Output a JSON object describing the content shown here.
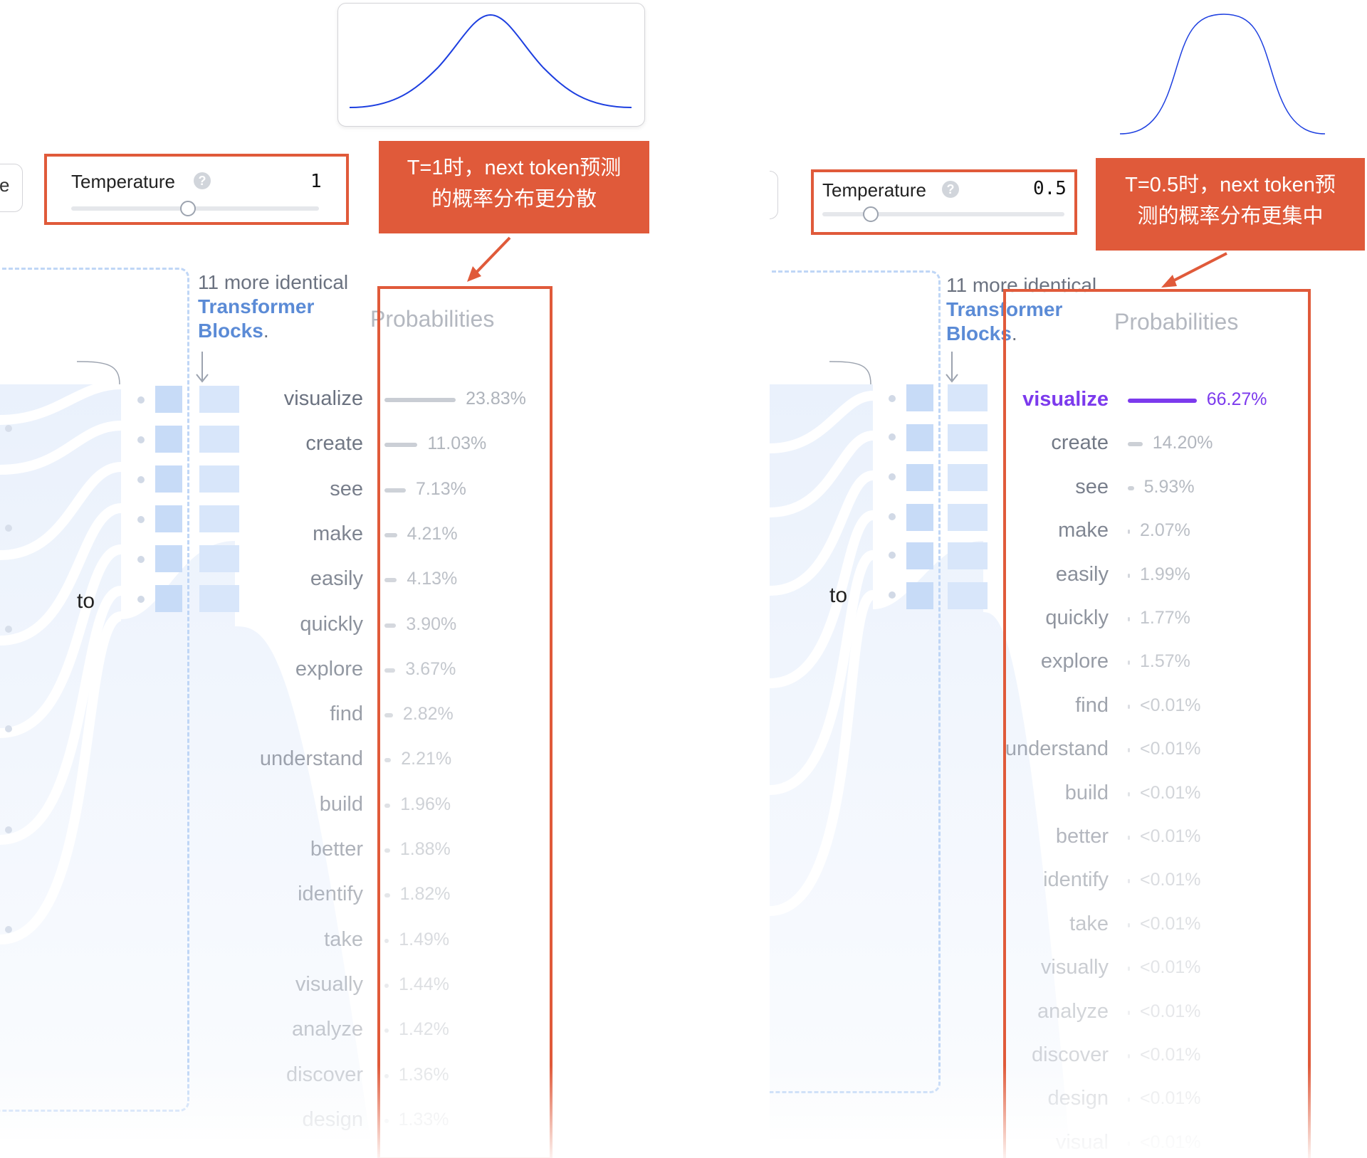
{
  "left": {
    "temperature": {
      "label": "Temperature",
      "help": "?",
      "value": "1",
      "slider_fraction": 0.47
    },
    "callout": {
      "lines": [
        "T=1时，next token预测",
        "的概率分布更分散"
      ]
    },
    "cut_control_glyph": "e",
    "more_blocks": {
      "prefix": "11 more identical",
      "link_line1": "Transformer",
      "link_line2": "Blocks",
      "suffix": "."
    },
    "probabilities_title": "Probabilities",
    "input_token": "to",
    "accent": "#c7cbd2",
    "probabilities": [
      {
        "word": "visualize",
        "pct": "23.83%",
        "value": 23.83
      },
      {
        "word": "create",
        "pct": "11.03%",
        "value": 11.03
      },
      {
        "word": "see",
        "pct": "7.13%",
        "value": 7.13
      },
      {
        "word": "make",
        "pct": "4.21%",
        "value": 4.21
      },
      {
        "word": "easily",
        "pct": "4.13%",
        "value": 4.13
      },
      {
        "word": "quickly",
        "pct": "3.90%",
        "value": 3.9
      },
      {
        "word": "explore",
        "pct": "3.67%",
        "value": 3.67
      },
      {
        "word": "find",
        "pct": "2.82%",
        "value": 2.82
      },
      {
        "word": "understand",
        "pct": "2.21%",
        "value": 2.21
      },
      {
        "word": "build",
        "pct": "1.96%",
        "value": 1.96
      },
      {
        "word": "better",
        "pct": "1.88%",
        "value": 1.88
      },
      {
        "word": "identify",
        "pct": "1.82%",
        "value": 1.82
      },
      {
        "word": "take",
        "pct": "1.49%",
        "value": 1.49
      },
      {
        "word": "visually",
        "pct": "1.44%",
        "value": 1.44
      },
      {
        "word": "analyze",
        "pct": "1.42%",
        "value": 1.42
      },
      {
        "word": "discover",
        "pct": "1.36%",
        "value": 1.36
      },
      {
        "word": "design",
        "pct": "1.33%",
        "value": 1.33
      }
    ]
  },
  "right": {
    "temperature": {
      "label": "Temperature",
      "help": "?",
      "value": "0.5",
      "slider_fraction": 0.2
    },
    "callout": {
      "lines": [
        "T=0.5时，next token预",
        "测的概率分布更集中"
      ]
    },
    "more_blocks": {
      "prefix": "11 more identical",
      "link_line1": "Transformer",
      "link_line2": "Blocks",
      "suffix": "."
    },
    "probabilities_title": "Probabilities",
    "input_token": "to",
    "accent": "#7c3aed",
    "probabilities": [
      {
        "word": "visualize",
        "pct": "66.27%",
        "value": 66.27
      },
      {
        "word": "create",
        "pct": "14.20%",
        "value": 14.2
      },
      {
        "word": "see",
        "pct": "5.93%",
        "value": 5.93
      },
      {
        "word": "make",
        "pct": "2.07%",
        "value": 2.07
      },
      {
        "word": "easily",
        "pct": "1.99%",
        "value": 1.99
      },
      {
        "word": "quickly",
        "pct": "1.77%",
        "value": 1.77
      },
      {
        "word": "explore",
        "pct": "1.57%",
        "value": 1.57
      },
      {
        "word": "find",
        "pct": "<0.01%",
        "value": 0.01
      },
      {
        "word": "understand",
        "pct": "<0.01%",
        "value": 0.01
      },
      {
        "word": "build",
        "pct": "<0.01%",
        "value": 0.01
      },
      {
        "word": "better",
        "pct": "<0.01%",
        "value": 0.01
      },
      {
        "word": "identify",
        "pct": "<0.01%",
        "value": 0.01
      },
      {
        "word": "take",
        "pct": "<0.01%",
        "value": 0.01
      },
      {
        "word": "visually",
        "pct": "<0.01%",
        "value": 0.01
      },
      {
        "word": "analyze",
        "pct": "<0.01%",
        "value": 0.01
      },
      {
        "word": "discover",
        "pct": "<0.01%",
        "value": 0.01
      },
      {
        "word": "design",
        "pct": "<0.01%",
        "value": 0.01
      },
      {
        "word": "visual",
        "pct": "<0.01%",
        "value": 0.01
      }
    ]
  }
}
